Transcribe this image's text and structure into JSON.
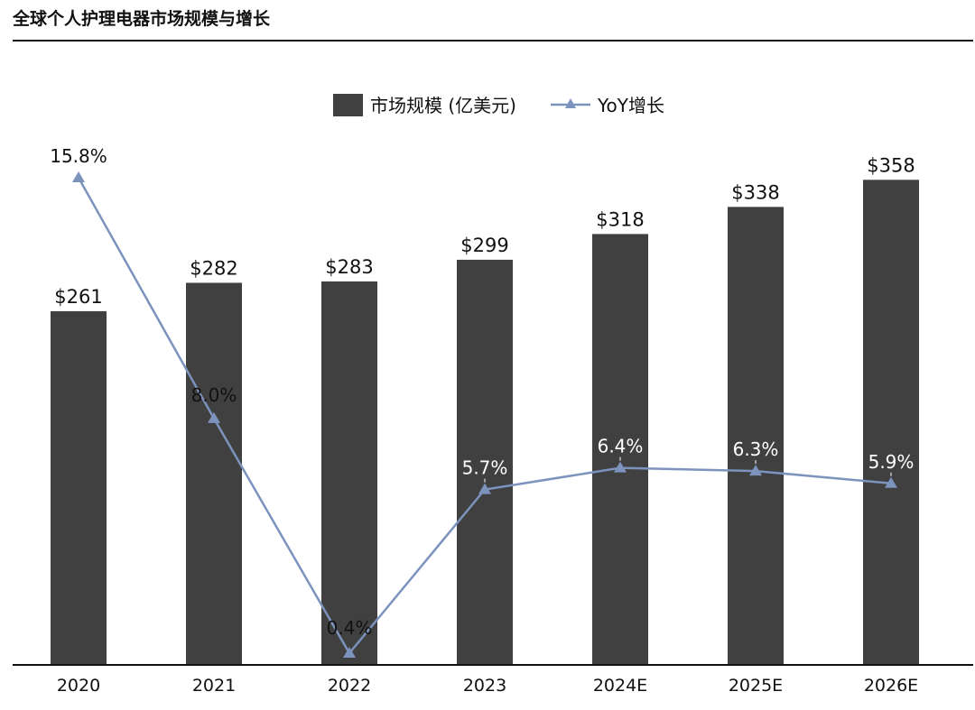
{
  "chart_data": {
    "type": "bar",
    "title": "全球个人护理电器市场规模与增长",
    "categories": [
      "2020",
      "2021",
      "2022",
      "2023",
      "2024E",
      "2025E",
      "2026E"
    ],
    "series": [
      {
        "name": "市场规模 (亿美元)",
        "type": "bar",
        "values": [
          261,
          282,
          283,
          299,
          318,
          338,
          358
        ],
        "labels": [
          "$261",
          "$282",
          "$283",
          "$299",
          "$318",
          "$338",
          "$358"
        ]
      },
      {
        "name": "YoY增长",
        "type": "line",
        "values": [
          15.8,
          8.0,
          0.4,
          5.7,
          6.4,
          6.3,
          5.9
        ],
        "labels": [
          "15.8%",
          "8.0%",
          "0.4%",
          "5.7%",
          "6.4%",
          "6.3%",
          "5.9%"
        ]
      }
    ],
    "legend": "top-center",
    "grid": false,
    "colors": {
      "bar": "#404040",
      "line": "#7b93bd"
    }
  }
}
